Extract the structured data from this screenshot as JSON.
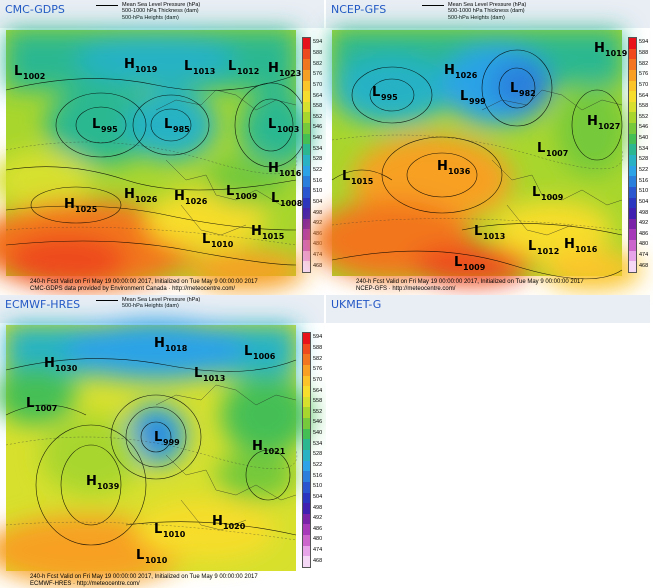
{
  "legend": {
    "mslp": "Mean Sea Level Pressure (hPa)",
    "thickness": "500-1000 hPa Thickness (dam)",
    "heights": "500-hPa Heights (dam)"
  },
  "colors": {
    "page_bg": "#ffffff",
    "header_bg": "#e9edf4",
    "title": "#2457c5",
    "contour": "#000000"
  },
  "colorbar": {
    "labels": [
      "594",
      "588",
      "582",
      "576",
      "570",
      "564",
      "558",
      "552",
      "546",
      "540",
      "534",
      "528",
      "522",
      "516",
      "510",
      "504",
      "498",
      "492",
      "486",
      "480",
      "474",
      "468"
    ],
    "colors": [
      "#e8121a",
      "#ee4a1d",
      "#f2761f",
      "#f7a023",
      "#fbc52a",
      "#f7dd2c",
      "#d7e02d",
      "#a8d62d",
      "#75c93a",
      "#44bf54",
      "#2bb890",
      "#28b2c4",
      "#2ba3e6",
      "#2b7fdc",
      "#2a56d0",
      "#2a35c0",
      "#4020b0",
      "#7a23a8",
      "#a63ab8",
      "#cc66cc",
      "#e8a4e8",
      "#f5d8f5"
    ]
  },
  "panels": [
    {
      "id": "cmc",
      "title": "CMC-GDPS",
      "legend_rows": 3,
      "footer1": "240-h Fcst Valid on Fri May 19 00:00:00 2017, Initialized on Tue May  9 00:00:00 2017",
      "footer2": "CMC-GDPS data provided by Environment Canada · http://meteocentre.com/",
      "centers": [
        {
          "t": "L",
          "v": "1002"
        },
        {
          "t": "H",
          "v": "1019"
        },
        {
          "t": "L",
          "v": "1013"
        },
        {
          "t": "L",
          "v": "1012"
        },
        {
          "t": "H",
          "v": "1023"
        },
        {
          "t": "L",
          "v": "995"
        },
        {
          "t": "L",
          "v": "985"
        },
        {
          "t": "L",
          "v": "1003"
        },
        {
          "t": "H",
          "v": "1016"
        },
        {
          "t": "L",
          "v": "1009"
        },
        {
          "t": "H",
          "v": "1025"
        },
        {
          "t": "H",
          "v": "1026"
        },
        {
          "t": "H",
          "v": "1026"
        },
        {
          "t": "L",
          "v": "1008"
        },
        {
          "t": "H",
          "v": "1015"
        },
        {
          "t": "L",
          "v": "1010"
        }
      ]
    },
    {
      "id": "gfs",
      "title": "NCEP-GFS",
      "legend_rows": 3,
      "footer1": "240-h Fcst Valid on Fri May 19 00:00:00 2017, Initialized on Tue May  9 00:00:00 2017",
      "footer2": "NCEP-GFS · http://meteocentre.com/",
      "centers": [
        {
          "t": "H",
          "v": "1019"
        },
        {
          "t": "H",
          "v": "1026"
        },
        {
          "t": "L",
          "v": "982"
        },
        {
          "t": "L",
          "v": "995"
        },
        {
          "t": "L",
          "v": "999"
        },
        {
          "t": "H",
          "v": "1027"
        },
        {
          "t": "L",
          "v": "1007"
        },
        {
          "t": "L",
          "v": "1015"
        },
        {
          "t": "H",
          "v": "1036"
        },
        {
          "t": "L",
          "v": "1009"
        },
        {
          "t": "L",
          "v": "1013"
        },
        {
          "t": "L",
          "v": "1012"
        },
        {
          "t": "H",
          "v": "1016"
        },
        {
          "t": "L",
          "v": "1009"
        }
      ]
    },
    {
      "id": "ecmwf",
      "title": "ECMWF-HRES",
      "legend_rows": 2,
      "footer1": "240-h Fcst Valid on Fri May 19 00:00:00 2017, Initialized on Tue May  9 00:00:00 2017",
      "footer2": "ECMWF-HRES · http://meteocentre.com/",
      "centers": [
        {
          "t": "H",
          "v": "1018"
        },
        {
          "t": "L",
          "v": "1006"
        },
        {
          "t": "H",
          "v": "1030"
        },
        {
          "t": "L",
          "v": "1013"
        },
        {
          "t": "L",
          "v": "1007"
        },
        {
          "t": "L",
          "v": "999"
        },
        {
          "t": "H",
          "v": "1039"
        },
        {
          "t": "H",
          "v": "1021"
        },
        {
          "t": "L",
          "v": "1010"
        },
        {
          "t": "H",
          "v": "1020"
        },
        {
          "t": "L",
          "v": "1010"
        }
      ]
    }
  ],
  "empty_panel": {
    "title": "UKMET-G"
  }
}
